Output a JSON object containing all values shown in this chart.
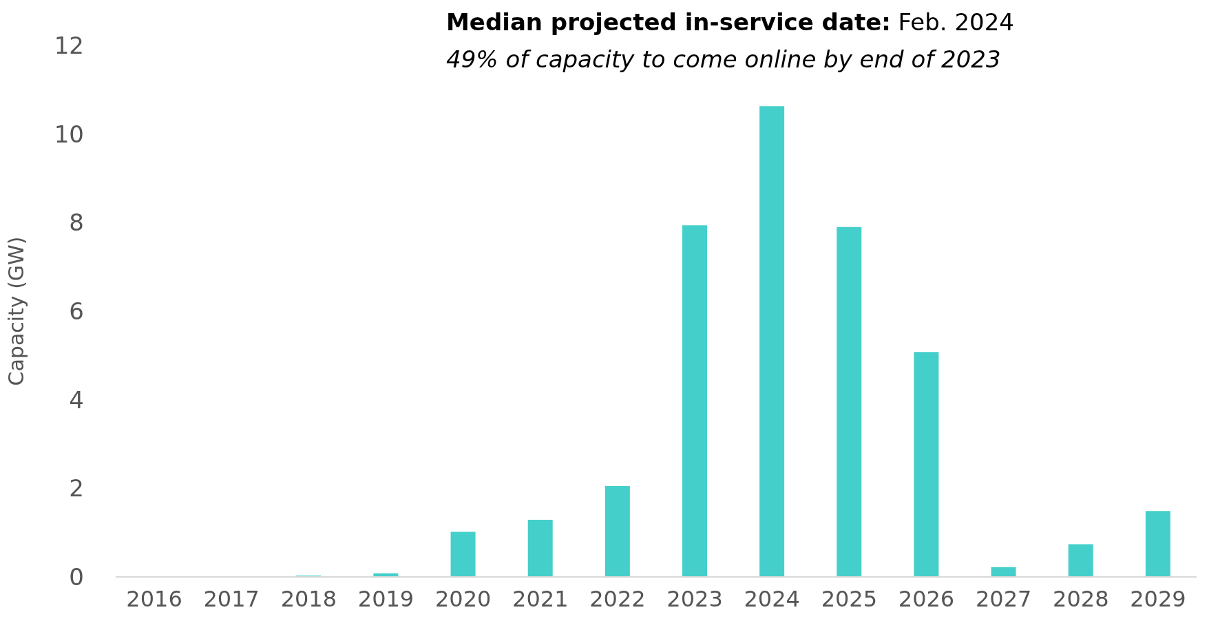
{
  "chart_data": {
    "type": "bar",
    "title": "Median projected in-service date: Feb. 2024",
    "subtitle": "49% of capacity to come online by end of 2023",
    "ylabel": "Capacity (GW)",
    "categories": [
      "2016",
      "2017",
      "2018",
      "2019",
      "2020",
      "2021",
      "2022",
      "2023",
      "2024",
      "2025",
      "2026",
      "2027",
      "2028",
      "2029"
    ],
    "values": [
      0,
      0,
      0.03,
      0.08,
      1.02,
      1.29,
      2.05,
      7.94,
      10.63,
      7.9,
      5.08,
      0.22,
      0.74,
      1.49
    ],
    "color": "#45cfcb",
    "ylim": [
      0,
      12
    ],
    "yticks": [
      0,
      2,
      4,
      6,
      8,
      10,
      12
    ],
    "grid": false
  }
}
